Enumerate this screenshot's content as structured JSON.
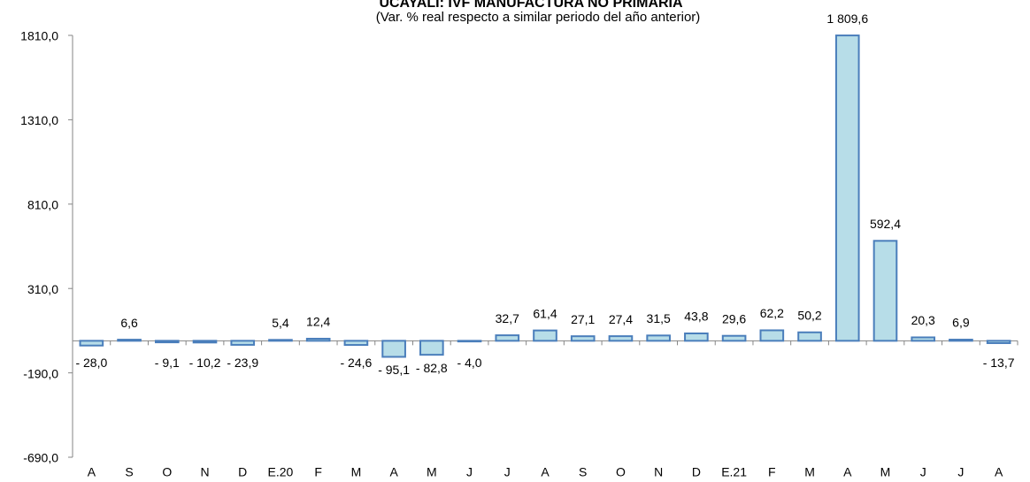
{
  "chart_data": {
    "type": "bar",
    "title": "UCAYALI: IVF MANUFACTURA NO PRIMARIA",
    "subtitle": "(Var. % real respecto a similar periodo del año anterior)",
    "categories": [
      "A",
      "S",
      "O",
      "N",
      "D",
      "E.20",
      "F",
      "M",
      "A",
      "M",
      "J",
      "J",
      "A",
      "S",
      "O",
      "N",
      "D",
      "E.21",
      "F",
      "M",
      "A",
      "M",
      "J",
      "J",
      "A"
    ],
    "values": [
      -28.0,
      6.6,
      -9.1,
      -10.2,
      -23.9,
      5.4,
      12.4,
      -24.6,
      -95.1,
      -82.8,
      -4.0,
      32.7,
      61.4,
      27.1,
      27.4,
      31.5,
      43.8,
      29.6,
      62.2,
      50.2,
      1809.6,
      592.4,
      20.3,
      6.9,
      -13.7
    ],
    "value_labels": [
      "- 28,0",
      "6,6",
      "- 9,1",
      "- 10,2",
      "- 23,9",
      "5,4",
      "12,4",
      "- 24,6",
      "- 95,1",
      "- 82,8",
      "- 4,0",
      "32,7",
      "61,4",
      "27,1",
      "27,4",
      "31,5",
      "43,8",
      "29,6",
      "62,2",
      "50,2",
      "1 809,6",
      "592,4",
      "20,3",
      "6,9",
      "- 13,7"
    ],
    "color": "#b7dde8",
    "edge_color": "#4a7ebb",
    "ylim": [
      -690,
      1810
    ],
    "yticks": [
      {
        "value": -690,
        "label": "-690,0"
      },
      {
        "value": -190,
        "label": "-190,0"
      },
      {
        "value": 310,
        "label": "310,0"
      },
      {
        "value": 810,
        "label": "810,0"
      },
      {
        "value": 1310,
        "label": "1310,0"
      },
      {
        "value": 1810,
        "label": "1810,0"
      }
    ],
    "grid": false
  }
}
